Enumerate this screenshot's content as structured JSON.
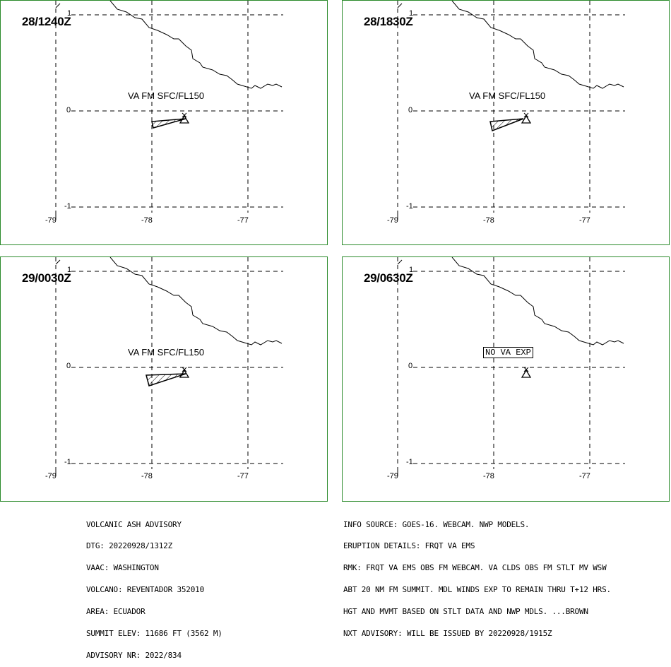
{
  "panels": [
    {
      "time": "28/1240Z",
      "va_text": "VA FM SFC/FL150",
      "va_boxed": false
    },
    {
      "time": "28/1830Z",
      "va_text": "VA FM SFC/FL150",
      "va_boxed": false
    },
    {
      "time": "29/0030Z",
      "va_text": "VA FM SFC/FL150",
      "va_boxed": false
    },
    {
      "time": "29/0630Z",
      "va_text": "NO VA EXP",
      "va_boxed": true
    }
  ],
  "grid": {
    "lat_labels": [
      "1",
      "0",
      "-1"
    ],
    "lon_labels": [
      "-79",
      "-78",
      "-77"
    ]
  },
  "advisory_left": [
    "VOLCANIC ASH ADVISORY",
    "DTG: 20220928/1312Z",
    "VAAC: WASHINGTON",
    "VOLCANO: REVENTADOR 352010",
    "AREA: ECUADOR",
    "SUMMIT ELEV: 11686 FT (3562 M)",
    "ADVISORY NR: 2022/834"
  ],
  "advisory_right": [
    "INFO SOURCE: GOES-16. WEBCAM. NWP MODELS.",
    "ERUPTION DETAILS: FRQT VA EMS",
    "RMK: FRQT VA EMS OBS FM WEBCAM. VA CLDS OBS FM STLT MV WSW",
    "ABT 20 NM FM SUMMIT. MDL WINDS EXP TO REMAIN THRU T+12 HRS.",
    "HGT AND MVMT BASED ON STLT DATA AND NWP MDLS. ...BROWN",
    "NXT ADVISORY: WILL BE ISSUED BY 20220928/1915Z"
  ],
  "colors": {
    "panel_border": "#2a8a2a",
    "grid": "#000000",
    "coastline": "#000000"
  },
  "icons": [
    "volcano-triangle-icon",
    "ash-polygon"
  ]
}
